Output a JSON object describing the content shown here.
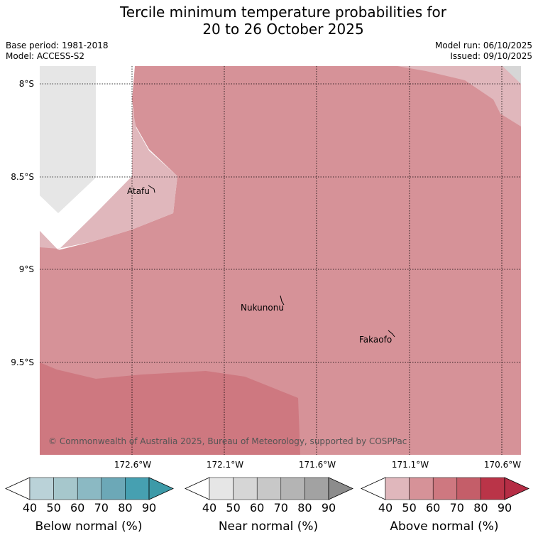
{
  "title_line1": "Tercile minimum temperature probabilities for",
  "title_line2": "20 to 26 October 2025",
  "base_period": "Base period: 1981-2018",
  "model": "Model: ACCESS-S2",
  "model_run": "Model run: 06/10/2025",
  "issued": "Issued: 09/10/2025",
  "lat_labels": [
    "8°S",
    "8.5°S",
    "9°S",
    "9.5°S"
  ],
  "lon_labels": [
    "172.6°W",
    "172.1°W",
    "171.6°W",
    "171.1°W",
    "170.6°W"
  ],
  "places": [
    "Atafu",
    "Nukunonu",
    "Fakaofo"
  ],
  "credit": "© Commonwealth of Australia 2025, Bureau of Meteorology, supported by COSPPac",
  "colorbars": [
    {
      "label": "Below normal (%)",
      "ticks": [
        "40",
        "50",
        "60",
        "70",
        "80",
        "90"
      ],
      "colors": [
        "#ffffff",
        "#bad2d8",
        "#a6c7cc",
        "#8bb9c3",
        "#6ca8b7",
        "#46a0b1",
        "#3d9aa8"
      ]
    },
    {
      "label": "Near normal (%)",
      "ticks": [
        "40",
        "50",
        "60",
        "70",
        "80",
        "90"
      ],
      "colors": [
        "#ffffff",
        "#e6e6e6",
        "#d6d6d6",
        "#c8c8c8",
        "#b4b4b4",
        "#a2a2a2",
        "#8c8c8c"
      ]
    },
    {
      "label": "Above normal (%)",
      "ticks": [
        "40",
        "50",
        "60",
        "70",
        "80",
        "90"
      ],
      "colors": [
        "#ffffff",
        "#e0b7bc",
        "#d69298",
        "#ce7880",
        "#c45e69",
        "#ba3448",
        "#b52d45"
      ]
    }
  ],
  "map_colors": {
    "above_40_50": "#e0b7bc",
    "above_50_60": "#d69298",
    "above_60_70": "#ce7880",
    "near_40_50": "#e6e6e6"
  }
}
